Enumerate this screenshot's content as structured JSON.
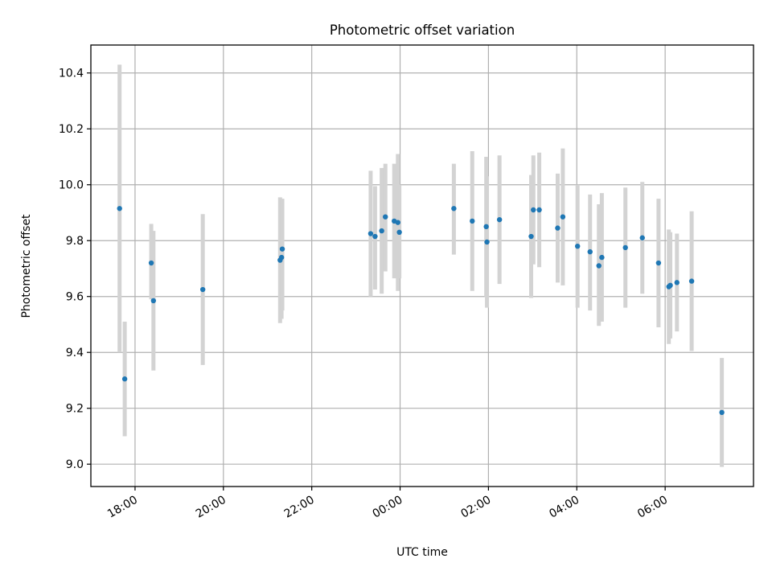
{
  "chart_data": {
    "type": "scatter",
    "title": "Photometric offset variation",
    "xlabel": "UTC time",
    "ylabel": "Photometric offset",
    "x_unit": "hours",
    "xlim": [
      "17:00",
      "08:00"
    ],
    "ylim": [
      8.92,
      10.5
    ],
    "x_ticks": [
      "18:00",
      "20:00",
      "22:00",
      "00:00",
      "02:00",
      "04:00",
      "06:00"
    ],
    "y_ticks": [
      "9.0",
      "9.2",
      "9.4",
      "9.6",
      "9.8",
      "10.0",
      "10.2",
      "10.4"
    ],
    "grid": true,
    "colors": {
      "point": "#1f77b4",
      "errorbar": "#d3d3d3",
      "grid": "#b0b0b0"
    },
    "points": [
      {
        "x": "17:39",
        "y": 9.915,
        "low": 9.4,
        "high": 10.43
      },
      {
        "x": "17:46",
        "y": 9.305,
        "low": 9.1,
        "high": 9.51
      },
      {
        "x": "18:22",
        "y": 9.72,
        "low": 9.59,
        "high": 9.86
      },
      {
        "x": "18:25",
        "y": 9.585,
        "low": 9.335,
        "high": 9.835
      },
      {
        "x": "19:32",
        "y": 9.625,
        "low": 9.355,
        "high": 9.895
      },
      {
        "x": "21:17",
        "y": 9.73,
        "low": 9.505,
        "high": 9.955
      },
      {
        "x": "21:19",
        "y": 9.74,
        "low": 9.52,
        "high": 9.945
      },
      {
        "x": "21:20",
        "y": 9.77,
        "low": 9.55,
        "high": 9.95
      },
      {
        "x": "23:20",
        "y": 9.825,
        "low": 9.6,
        "high": 10.05
      },
      {
        "x": "23:26",
        "y": 9.815,
        "low": 9.625,
        "high": 9.995
      },
      {
        "x": "23:35",
        "y": 9.835,
        "low": 9.61,
        "high": 10.06
      },
      {
        "x": "23:40",
        "y": 9.885,
        "low": 9.69,
        "high": 10.075
      },
      {
        "x": "23:52",
        "y": 9.87,
        "low": 9.665,
        "high": 10.075
      },
      {
        "x": "23:57",
        "y": 9.865,
        "low": 9.62,
        "high": 10.11
      },
      {
        "x": "23:59",
        "y": 9.83,
        "low": 9.665,
        "high": 10.0
      },
      {
        "x": "01:13",
        "y": 9.915,
        "low": 9.75,
        "high": 10.075
      },
      {
        "x": "01:38",
        "y": 9.87,
        "low": 9.62,
        "high": 10.12
      },
      {
        "x": "01:57",
        "y": 9.85,
        "low": 9.6,
        "high": 10.1
      },
      {
        "x": "01:58",
        "y": 9.795,
        "low": 9.56,
        "high": 10.03
      },
      {
        "x": "02:15",
        "y": 9.875,
        "low": 9.645,
        "high": 10.105
      },
      {
        "x": "02:58",
        "y": 9.815,
        "low": 9.595,
        "high": 10.035
      },
      {
        "x": "03:01",
        "y": 9.91,
        "low": 9.715,
        "high": 10.105
      },
      {
        "x": "03:09",
        "y": 9.91,
        "low": 9.705,
        "high": 10.115
      },
      {
        "x": "03:34",
        "y": 9.845,
        "low": 9.65,
        "high": 10.04
      },
      {
        "x": "03:41",
        "y": 9.885,
        "low": 9.64,
        "high": 10.13
      },
      {
        "x": "04:01",
        "y": 9.78,
        "low": 9.56,
        "high": 10.0
      },
      {
        "x": "04:18",
        "y": 9.76,
        "low": 9.55,
        "high": 9.965
      },
      {
        "x": "04:30",
        "y": 9.71,
        "low": 9.495,
        "high": 9.93
      },
      {
        "x": "04:34",
        "y": 9.74,
        "low": 9.51,
        "high": 9.97
      },
      {
        "x": "05:06",
        "y": 9.775,
        "low": 9.56,
        "high": 9.99
      },
      {
        "x": "05:29",
        "y": 9.81,
        "low": 9.61,
        "high": 10.01
      },
      {
        "x": "05:51",
        "y": 9.72,
        "low": 9.49,
        "high": 9.95
      },
      {
        "x": "06:05",
        "y": 9.635,
        "low": 9.43,
        "high": 9.84
      },
      {
        "x": "06:07",
        "y": 9.64,
        "low": 9.45,
        "high": 9.83
      },
      {
        "x": "06:16",
        "y": 9.65,
        "low": 9.475,
        "high": 9.825
      },
      {
        "x": "06:36",
        "y": 9.655,
        "low": 9.405,
        "high": 9.905
      },
      {
        "x": "07:17",
        "y": 9.185,
        "low": 8.99,
        "high": 9.38
      }
    ]
  }
}
